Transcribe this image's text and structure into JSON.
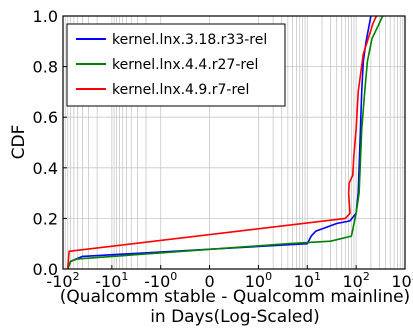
{
  "chart_data": {
    "type": "line",
    "title": "",
    "xlabel_line1": "(Qualcomm stable - Qualcomm mainline)",
    "xlabel_line2": "in Days(Log-Scaled)",
    "ylabel": "CDF",
    "xscale": "symlog",
    "xlim": [
      -100,
      1000
    ],
    "ylim": [
      0.0,
      1.0
    ],
    "grid": true,
    "legend_position": "top-left",
    "x_ticks": [
      {
        "value": -100,
        "base": "-10",
        "exp": "2"
      },
      {
        "value": -10,
        "base": "-10",
        "exp": "1"
      },
      {
        "value": -1,
        "base": "-10",
        "exp": "0"
      },
      {
        "value": 0,
        "label": "0"
      },
      {
        "value": 1,
        "base": "10",
        "exp": "0"
      },
      {
        "value": 10,
        "base": "10",
        "exp": "1"
      },
      {
        "value": 100,
        "base": "10",
        "exp": "2"
      },
      {
        "value": 1000,
        "base": "10",
        "exp": "3"
      }
    ],
    "y_ticks": [
      "0.0",
      "0.2",
      "0.4",
      "0.6",
      "0.8",
      "1.0"
    ],
    "series": [
      {
        "name": "kernel.lnx.3.18.r33-rel",
        "color": "#0000ff",
        "points": [
          [
            -80,
            0.0
          ],
          [
            -70,
            0.03
          ],
          [
            -40,
            0.05
          ],
          [
            10,
            0.1
          ],
          [
            12,
            0.13
          ],
          [
            15,
            0.15
          ],
          [
            40,
            0.18
          ],
          [
            75,
            0.19
          ],
          [
            100,
            0.22
          ],
          [
            110,
            0.3
          ],
          [
            120,
            0.5
          ],
          [
            130,
            0.7
          ],
          [
            140,
            0.82
          ],
          [
            160,
            0.9
          ],
          [
            200,
            1.0
          ]
        ]
      },
      {
        "name": "kernel.lnx.4.4.r27-rel",
        "color": "#008000",
        "points": [
          [
            -80,
            0.0
          ],
          [
            -70,
            0.03
          ],
          [
            -50,
            0.04
          ],
          [
            4,
            0.1
          ],
          [
            30,
            0.11
          ],
          [
            80,
            0.13
          ],
          [
            100,
            0.22
          ],
          [
            115,
            0.3
          ],
          [
            130,
            0.55
          ],
          [
            150,
            0.7
          ],
          [
            170,
            0.82
          ],
          [
            210,
            0.91
          ],
          [
            280,
            0.96
          ],
          [
            350,
            1.0
          ]
        ]
      },
      {
        "name": "kernel.lnx.4.9.r7-rel",
        "color": "#ff0000",
        "points": [
          [
            -80,
            0.0
          ],
          [
            -75,
            0.07
          ],
          [
            60,
            0.2
          ],
          [
            75,
            0.22
          ],
          [
            70,
            0.3
          ],
          [
            72,
            0.34
          ],
          [
            85,
            0.37
          ],
          [
            90,
            0.45
          ],
          [
            100,
            0.55
          ],
          [
            110,
            0.7
          ],
          [
            140,
            0.85
          ],
          [
            170,
            0.9
          ],
          [
            220,
            0.97
          ],
          [
            260,
            1.0
          ]
        ]
      }
    ]
  }
}
